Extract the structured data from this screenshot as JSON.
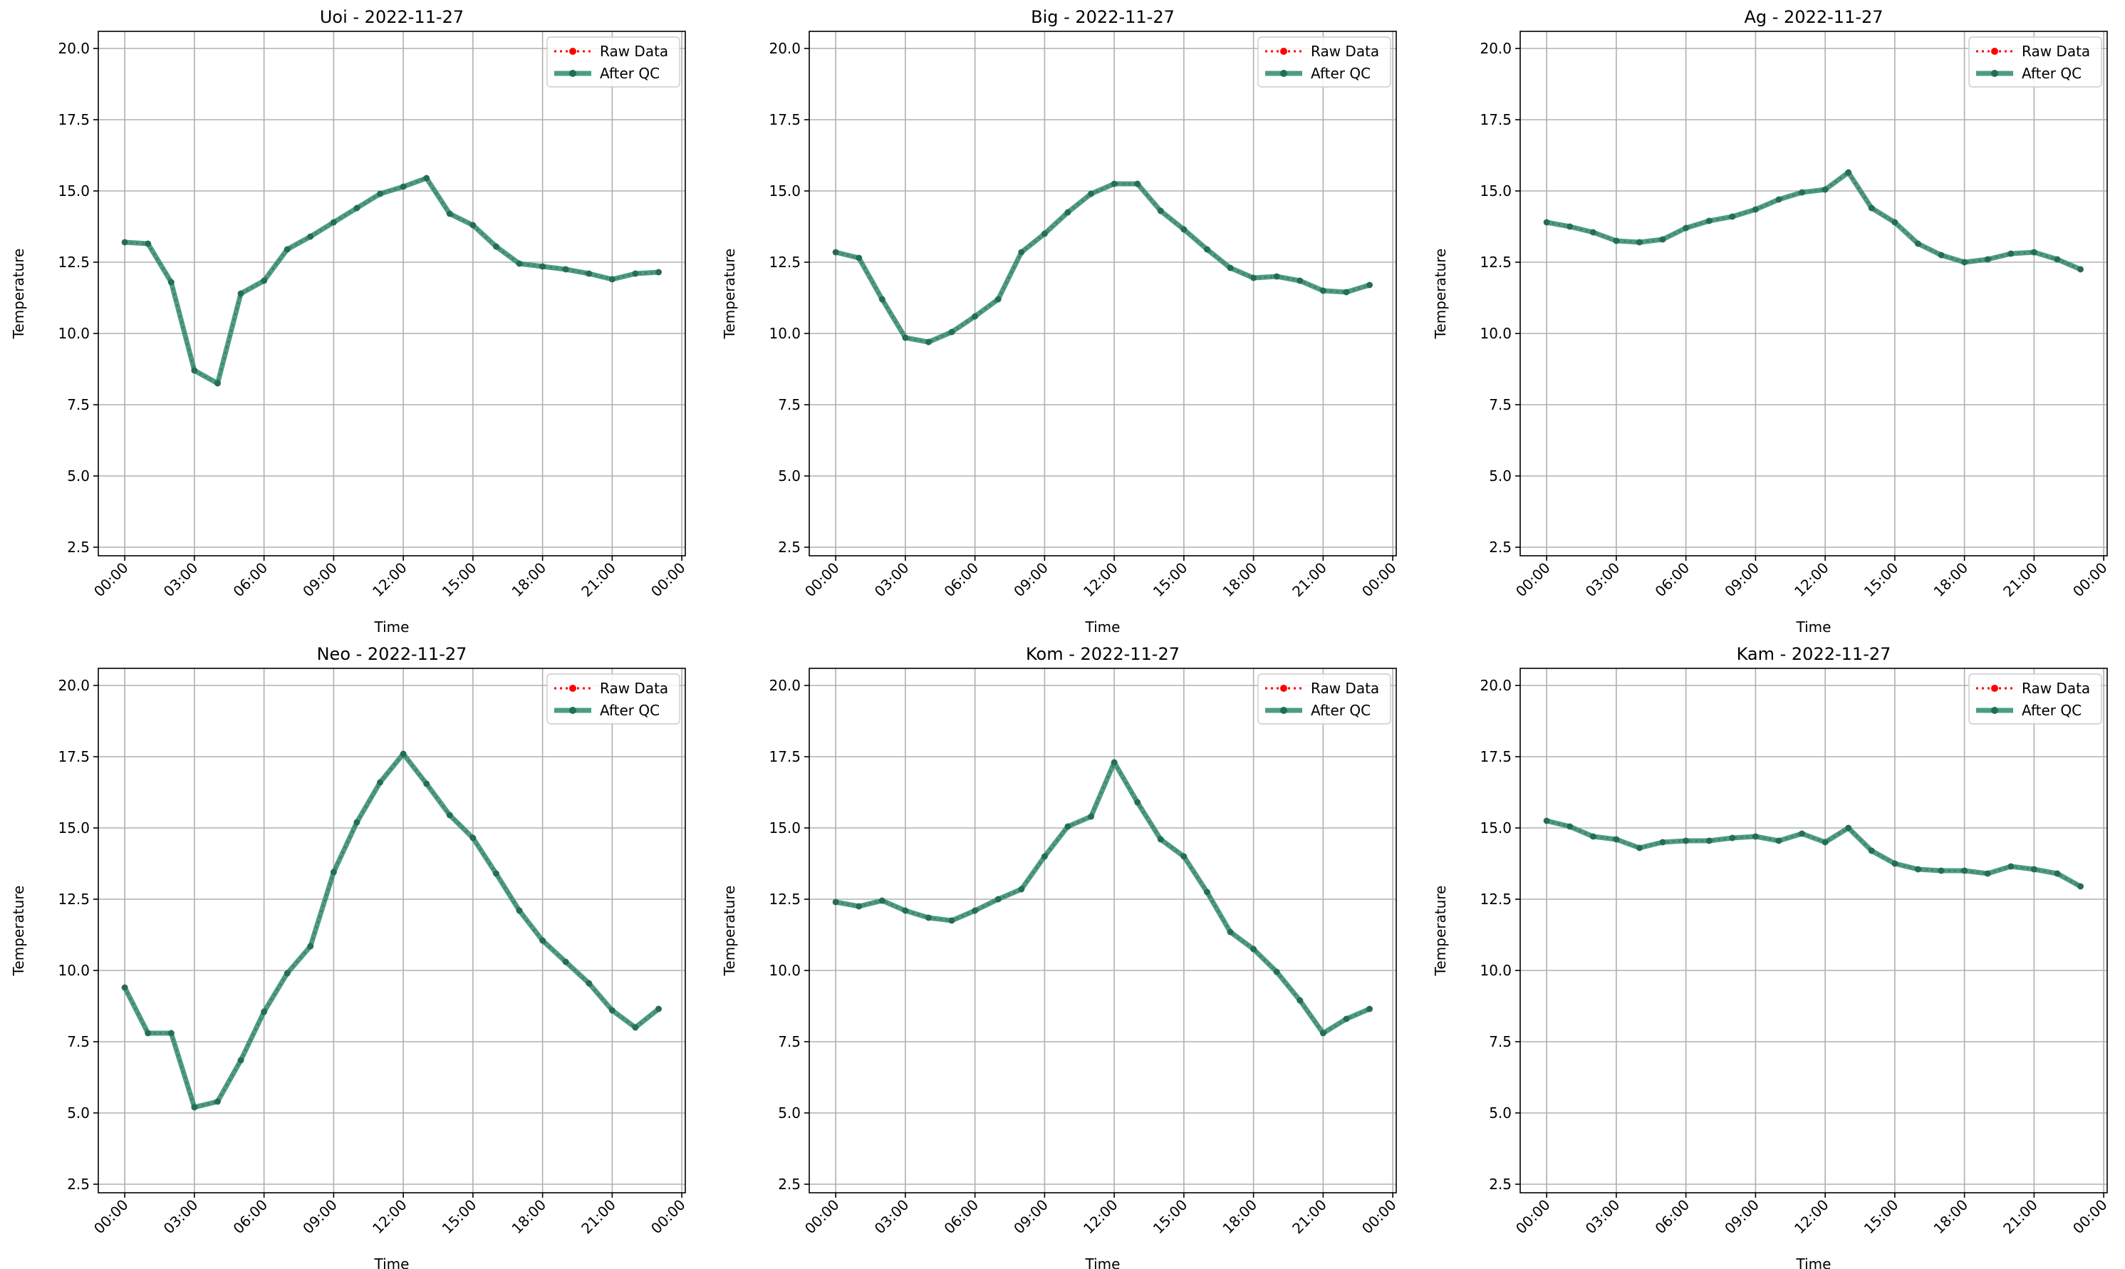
{
  "colors": {
    "raw": "#ff0000",
    "qc": "#2e8b70",
    "grid": "#b0b0b0",
    "axis": "#000000"
  },
  "legend": {
    "raw_label": "Raw Data",
    "qc_label": "After QC"
  },
  "chart_data": [
    {
      "type": "line",
      "title": "Uoi - 2022-11-27",
      "xlabel": "Time",
      "ylabel": "Temperature",
      "ylim": [
        2.2,
        20.6
      ],
      "yticks": [
        "2.5",
        "5.0",
        "7.5",
        "10.0",
        "12.5",
        "15.0",
        "17.5",
        "20.0"
      ],
      "xticks": [
        "00:00",
        "03:00",
        "06:00",
        "09:00",
        "12:00",
        "15:00",
        "18:00",
        "21:00",
        "00:00"
      ],
      "x_hours": [
        0,
        1,
        2,
        3,
        4,
        5,
        6,
        7,
        8,
        9,
        10,
        11,
        12,
        13,
        14,
        15,
        16,
        17,
        18,
        19,
        20,
        21,
        22,
        23
      ],
      "grid": true,
      "legend_position": "top-right",
      "series": [
        {
          "name": "Raw Data",
          "values": [
            13.2,
            13.15,
            11.8,
            8.7,
            8.25,
            11.4,
            11.85,
            12.95,
            13.4,
            13.9,
            14.4,
            14.9,
            15.15,
            15.45,
            14.2,
            13.8,
            13.05,
            12.45,
            12.35,
            12.25,
            12.1,
            11.9,
            12.1,
            12.15
          ]
        },
        {
          "name": "After QC",
          "values": [
            13.2,
            13.15,
            11.8,
            8.7,
            8.25,
            11.4,
            11.85,
            12.95,
            13.4,
            13.9,
            14.4,
            14.9,
            15.15,
            15.45,
            14.2,
            13.8,
            13.05,
            12.45,
            12.35,
            12.25,
            12.1,
            11.9,
            12.1,
            12.15
          ]
        }
      ]
    },
    {
      "type": "line",
      "title": "Big - 2022-11-27",
      "xlabel": "Time",
      "ylabel": "Temperature",
      "ylim": [
        2.2,
        20.6
      ],
      "yticks": [
        "2.5",
        "5.0",
        "7.5",
        "10.0",
        "12.5",
        "15.0",
        "17.5",
        "20.0"
      ],
      "xticks": [
        "00:00",
        "03:00",
        "06:00",
        "09:00",
        "12:00",
        "15:00",
        "18:00",
        "21:00",
        "00:00"
      ],
      "x_hours": [
        0,
        1,
        2,
        3,
        4,
        5,
        6,
        7,
        8,
        9,
        10,
        11,
        12,
        13,
        14,
        15,
        16,
        17,
        18,
        19,
        20,
        21,
        22,
        23
      ],
      "grid": true,
      "legend_position": "top-right",
      "series": [
        {
          "name": "Raw Data",
          "values": [
            12.85,
            12.65,
            11.2,
            9.85,
            9.7,
            10.05,
            10.6,
            11.2,
            12.85,
            13.5,
            14.25,
            14.9,
            15.25,
            15.25,
            14.3,
            13.65,
            12.95,
            12.3,
            11.95,
            12.0,
            11.85,
            11.5,
            11.45,
            11.7
          ]
        },
        {
          "name": "After QC",
          "values": [
            12.85,
            12.65,
            11.2,
            9.85,
            9.7,
            10.05,
            10.6,
            11.2,
            12.85,
            13.5,
            14.25,
            14.9,
            15.25,
            15.25,
            14.3,
            13.65,
            12.95,
            12.3,
            11.95,
            12.0,
            11.85,
            11.5,
            11.45,
            11.7
          ]
        }
      ]
    },
    {
      "type": "line",
      "title": "Ag - 2022-11-27",
      "xlabel": "Time",
      "ylabel": "Temperature",
      "ylim": [
        2.2,
        20.6
      ],
      "yticks": [
        "2.5",
        "5.0",
        "7.5",
        "10.0",
        "12.5",
        "15.0",
        "17.5",
        "20.0"
      ],
      "xticks": [
        "00:00",
        "03:00",
        "06:00",
        "09:00",
        "12:00",
        "15:00",
        "18:00",
        "21:00",
        "00:00"
      ],
      "x_hours": [
        0,
        1,
        2,
        3,
        4,
        5,
        6,
        7,
        8,
        9,
        10,
        11,
        12,
        13,
        14,
        15,
        16,
        17,
        18,
        19,
        20,
        21,
        22,
        23
      ],
      "grid": true,
      "legend_position": "top-right",
      "series": [
        {
          "name": "Raw Data",
          "values": [
            13.9,
            13.75,
            13.55,
            13.25,
            13.2,
            13.3,
            13.7,
            13.95,
            14.1,
            14.35,
            14.7,
            14.95,
            15.05,
            15.65,
            14.4,
            13.9,
            13.15,
            12.75,
            12.5,
            12.6,
            12.8,
            12.85,
            12.6,
            12.25
          ]
        },
        {
          "name": "After QC",
          "values": [
            13.9,
            13.75,
            13.55,
            13.25,
            13.2,
            13.3,
            13.7,
            13.95,
            14.1,
            14.35,
            14.7,
            14.95,
            15.05,
            15.65,
            14.4,
            13.9,
            13.15,
            12.75,
            12.5,
            12.6,
            12.8,
            12.85,
            12.6,
            12.25
          ]
        }
      ]
    },
    {
      "type": "line",
      "title": "Neo - 2022-11-27",
      "xlabel": "Time",
      "ylabel": "Temperature",
      "ylim": [
        2.2,
        20.6
      ],
      "yticks": [
        "2.5",
        "5.0",
        "7.5",
        "10.0",
        "12.5",
        "15.0",
        "17.5",
        "20.0"
      ],
      "xticks": [
        "00:00",
        "03:00",
        "06:00",
        "09:00",
        "12:00",
        "15:00",
        "18:00",
        "21:00",
        "00:00"
      ],
      "x_hours": [
        0,
        1,
        2,
        3,
        4,
        5,
        6,
        7,
        8,
        9,
        10,
        11,
        12,
        13,
        14,
        15,
        16,
        17,
        18,
        19,
        20,
        21,
        22,
        23
      ],
      "grid": true,
      "legend_position": "top-right",
      "series": [
        {
          "name": "Raw Data",
          "values": [
            9.4,
            7.8,
            7.8,
            5.2,
            5.4,
            6.85,
            8.55,
            9.9,
            10.85,
            13.45,
            15.2,
            16.6,
            17.6,
            16.55,
            15.45,
            14.65,
            13.4,
            12.1,
            11.05,
            10.3,
            9.55,
            8.6,
            8.0,
            8.65
          ]
        },
        {
          "name": "After QC",
          "values": [
            9.4,
            7.8,
            7.8,
            5.2,
            5.4,
            6.85,
            8.55,
            9.9,
            10.85,
            13.45,
            15.2,
            16.6,
            17.6,
            16.55,
            15.45,
            14.65,
            13.4,
            12.1,
            11.05,
            10.3,
            9.55,
            8.6,
            8.0,
            8.65
          ]
        }
      ]
    },
    {
      "type": "line",
      "title": "Kom - 2022-11-27",
      "xlabel": "Time",
      "ylabel": "Temperature",
      "ylim": [
        2.2,
        20.6
      ],
      "yticks": [
        "2.5",
        "5.0",
        "7.5",
        "10.0",
        "12.5",
        "15.0",
        "17.5",
        "20.0"
      ],
      "xticks": [
        "00:00",
        "03:00",
        "06:00",
        "09:00",
        "12:00",
        "15:00",
        "18:00",
        "21:00",
        "00:00"
      ],
      "x_hours": [
        0,
        1,
        2,
        3,
        4,
        5,
        6,
        7,
        8,
        9,
        10,
        11,
        12,
        13,
        14,
        15,
        16,
        17,
        18,
        19,
        20,
        21,
        22,
        23
      ],
      "grid": true,
      "legend_position": "top-right",
      "series": [
        {
          "name": "Raw Data",
          "values": [
            12.4,
            12.25,
            12.45,
            12.1,
            11.85,
            11.75,
            12.1,
            12.5,
            12.85,
            14.0,
            15.05,
            15.4,
            17.3,
            15.9,
            14.6,
            14.0,
            12.75,
            11.35,
            10.75,
            9.95,
            8.95,
            7.8,
            8.3,
            8.65
          ]
        },
        {
          "name": "After QC",
          "values": [
            12.4,
            12.25,
            12.45,
            12.1,
            11.85,
            11.75,
            12.1,
            12.5,
            12.85,
            14.0,
            15.05,
            15.4,
            17.3,
            15.9,
            14.6,
            14.0,
            12.75,
            11.35,
            10.75,
            9.95,
            8.95,
            7.8,
            8.3,
            8.65
          ]
        }
      ]
    },
    {
      "type": "line",
      "title": "Kam - 2022-11-27",
      "xlabel": "Time",
      "ylabel": "Temperature",
      "ylim": [
        2.2,
        20.6
      ],
      "yticks": [
        "2.5",
        "5.0",
        "7.5",
        "10.0",
        "12.5",
        "15.0",
        "17.5",
        "20.0"
      ],
      "xticks": [
        "00:00",
        "03:00",
        "06:00",
        "09:00",
        "12:00",
        "15:00",
        "18:00",
        "21:00",
        "00:00"
      ],
      "x_hours": [
        0,
        1,
        2,
        3,
        4,
        5,
        6,
        7,
        8,
        9,
        10,
        11,
        12,
        13,
        14,
        15,
        16,
        17,
        18,
        19,
        20,
        21,
        22,
        23
      ],
      "grid": true,
      "legend_position": "top-right",
      "series": [
        {
          "name": "Raw Data",
          "values": [
            15.25,
            15.05,
            14.7,
            14.6,
            14.3,
            14.5,
            14.55,
            14.55,
            14.65,
            14.7,
            14.55,
            14.8,
            14.5,
            15.0,
            14.2,
            13.75,
            13.55,
            13.5,
            13.5,
            13.4,
            13.65,
            13.55,
            13.4,
            12.95
          ]
        },
        {
          "name": "After QC",
          "values": [
            15.25,
            15.05,
            14.7,
            14.6,
            14.3,
            14.5,
            14.55,
            14.55,
            14.65,
            14.7,
            14.55,
            14.8,
            14.5,
            15.0,
            14.2,
            13.75,
            13.55,
            13.5,
            13.5,
            13.4,
            13.65,
            13.55,
            13.4,
            12.95
          ]
        }
      ]
    }
  ]
}
